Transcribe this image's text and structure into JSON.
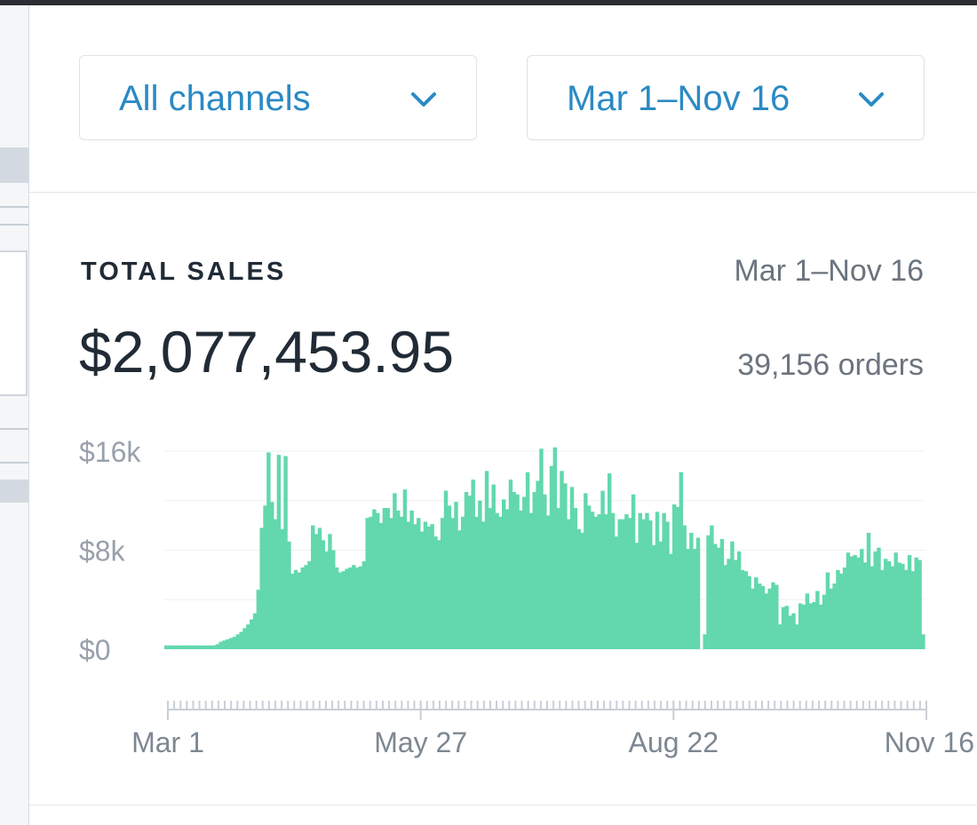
{
  "filters": {
    "channel": "All channels",
    "date_range": "Mar 1–Nov 16",
    "chevron_icon": "chevron-down-icon"
  },
  "card": {
    "title": "TOTAL SALES",
    "date_range": "Mar 1–Nov 16",
    "total": "$2,077,453.95",
    "orders": "39,156 orders"
  },
  "colors": {
    "accent": "#2a8ac4",
    "bar_fill": "#62d8ac",
    "text_primary": "#212b36",
    "text_muted": "#6b747e"
  },
  "chart_data": {
    "type": "bar",
    "title": "TOTAL SALES",
    "xlabel": "",
    "ylabel": "",
    "x_tick_labels": [
      "Mar 1",
      "May 27",
      "Aug 22",
      "Nov 16"
    ],
    "y_tick_labels": [
      "$0",
      "$8k",
      "$16k"
    ],
    "ylim": [
      0,
      16000
    ],
    "grid": true,
    "x_start": "Mar 1",
    "x_end": "Nov 16",
    "series": [
      {
        "values": [
          300,
          300,
          300,
          300,
          300,
          300,
          300,
          300,
          300,
          300,
          300,
          300,
          300,
          300,
          300,
          400,
          600,
          700,
          800,
          900,
          1000,
          1200,
          1400,
          1700,
          2000,
          2400,
          2900,
          4800,
          9800,
          11600,
          15900,
          11900,
          10500,
          15700,
          9700,
          15600,
          8700,
          6100,
          6400,
          6200,
          6600,
          6800,
          7100,
          10000,
          9300,
          9800,
          8800,
          7900,
          9300,
          8000,
          6600,
          6200,
          6300,
          6500,
          6600,
          6800,
          6600,
          6700,
          7100,
          10600,
          10700,
          11300,
          11000,
          10200,
          11400,
          11400,
          10600,
          12600,
          11200,
          10700,
          12900,
          10300,
          11200,
          10100,
          10600,
          9500,
          10300,
          9900,
          10100,
          9100,
          8800,
          10600,
          12800,
          11600,
          10600,
          11900,
          9600,
          10700,
          12700,
          12400,
          13700,
          10700,
          12000,
          10300,
          14400,
          11400,
          13300,
          11000,
          10700,
          12100,
          11300,
          13700,
          12700,
          12500,
          11200,
          12300,
          14300,
          11000,
          12700,
          13600,
          16200,
          12500,
          10800,
          14800,
          16300,
          11400,
          14400,
          13400,
          10500,
          13100,
          11400,
          9700,
          9400,
          12600,
          11600,
          11100,
          10700,
          10900,
          12800,
          10900,
          14200,
          11000,
          9100,
          10500,
          10500,
          10900,
          10600,
          12500,
          8600,
          11000,
          10500,
          11000,
          10400,
          8400,
          11100,
          8700,
          11000,
          10300,
          7700,
          11700,
          11500,
          14300,
          10000,
          8100,
          9400,
          8100,
          9000,
          0,
          1200,
          9200,
          10000,
          8500,
          8200,
          8900,
          6800,
          7300,
          8700,
          7200,
          7900,
          6400,
          6300,
          5900,
          4900,
          5800,
          5300,
          5100,
          4500,
          4900,
          5400,
          5200,
          2000,
          3400,
          3500,
          2700,
          2900,
          2000,
          3700,
          3600,
          4500,
          3700,
          3800,
          4700,
          3600,
          4400,
          6200,
          4900,
          5300,
          6400,
          6100,
          6600,
          7800,
          7500,
          7600,
          7400,
          8100,
          7000,
          9400,
          6700,
          7900,
          8200,
          6400,
          7300,
          7100,
          6700,
          7800,
          7000,
          6900,
          6400,
          7600,
          6300,
          7400,
          7200,
          1200
        ]
      }
    ]
  }
}
